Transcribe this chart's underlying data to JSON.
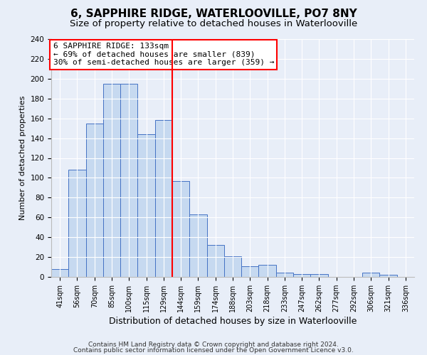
{
  "title": "6, SAPPHIRE RIDGE, WATERLOOVILLE, PO7 8NY",
  "subtitle": "Size of property relative to detached houses in Waterlooville",
  "xlabel": "Distribution of detached houses by size in Waterlooville",
  "ylabel": "Number of detached properties",
  "bin_labels": [
    "41sqm",
    "56sqm",
    "70sqm",
    "85sqm",
    "100sqm",
    "115sqm",
    "129sqm",
    "144sqm",
    "159sqm",
    "174sqm",
    "188sqm",
    "203sqm",
    "218sqm",
    "233sqm",
    "247sqm",
    "262sqm",
    "277sqm",
    "292sqm",
    "306sqm",
    "321sqm",
    "336sqm"
  ],
  "bar_heights": [
    8,
    108,
    155,
    195,
    195,
    144,
    158,
    97,
    63,
    32,
    21,
    11,
    12,
    4,
    3,
    3,
    0,
    0,
    4,
    2,
    0
  ],
  "bar_color": "#c6d9f0",
  "bar_edge_color": "#4472c4",
  "vline_color": "red",
  "annotation_title": "6 SAPPHIRE RIDGE: 133sqm",
  "annotation_line1": "← 69% of detached houses are smaller (839)",
  "annotation_line2": "30% of semi-detached houses are larger (359) →",
  "annotation_box_color": "#ffffff",
  "annotation_box_edge": "red",
  "ylim": [
    0,
    240
  ],
  "yticks": [
    0,
    20,
    40,
    60,
    80,
    100,
    120,
    140,
    160,
    180,
    200,
    220,
    240
  ],
  "footnote1": "Contains HM Land Registry data © Crown copyright and database right 2024.",
  "footnote2": "Contains public sector information licensed under the Open Government Licence v3.0.",
  "bg_color": "#e8eef8",
  "title_fontsize": 11,
  "subtitle_fontsize": 9.5,
  "xlabel_fontsize": 9,
  "ylabel_fontsize": 8,
  "footnote_fontsize": 6.5,
  "annotation_fontsize": 8,
  "tick_fontsize": 7
}
